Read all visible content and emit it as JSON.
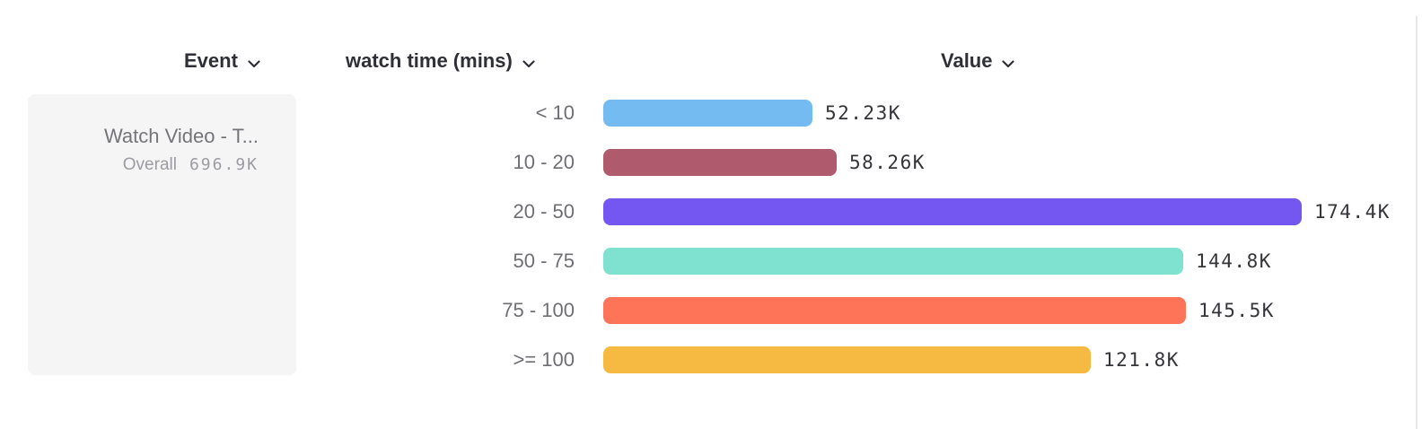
{
  "header": {
    "columns": [
      {
        "label": "Event"
      },
      {
        "label": "watch time (mins)"
      },
      {
        "label": "Value"
      }
    ]
  },
  "event_card": {
    "title": "Watch Video - T...",
    "overall_label": "Overall",
    "overall_value": "696.9K"
  },
  "chart_data": {
    "type": "bar",
    "orientation": "horizontal",
    "breakdown_property": "watch time (mins)",
    "categories": [
      "< 10",
      "10 - 20",
      "20 - 50",
      "50 - 75",
      "75 - 100",
      ">= 100"
    ],
    "values": [
      52230,
      58260,
      174400,
      144800,
      145500,
      121800
    ],
    "value_labels": [
      "52.23K",
      "58.26K",
      "174.4K",
      "144.8K",
      "145.5K",
      "121.8K"
    ],
    "bar_colors": [
      "#74bbf2",
      "#b05a6d",
      "#7456f1",
      "#7fe2d1",
      "#fd7458",
      "#f6ba42"
    ],
    "max_value": 174400,
    "grid": false,
    "legend": false
  },
  "colors": {
    "header_text": "#2f2f37",
    "category_text": "#6e6e74",
    "value_text": "#343439",
    "card_bg": "#f5f5f6",
    "card_title_text": "#74747a",
    "card_sub_text": "#9b9ba1",
    "divider": "#e6e6e8"
  }
}
